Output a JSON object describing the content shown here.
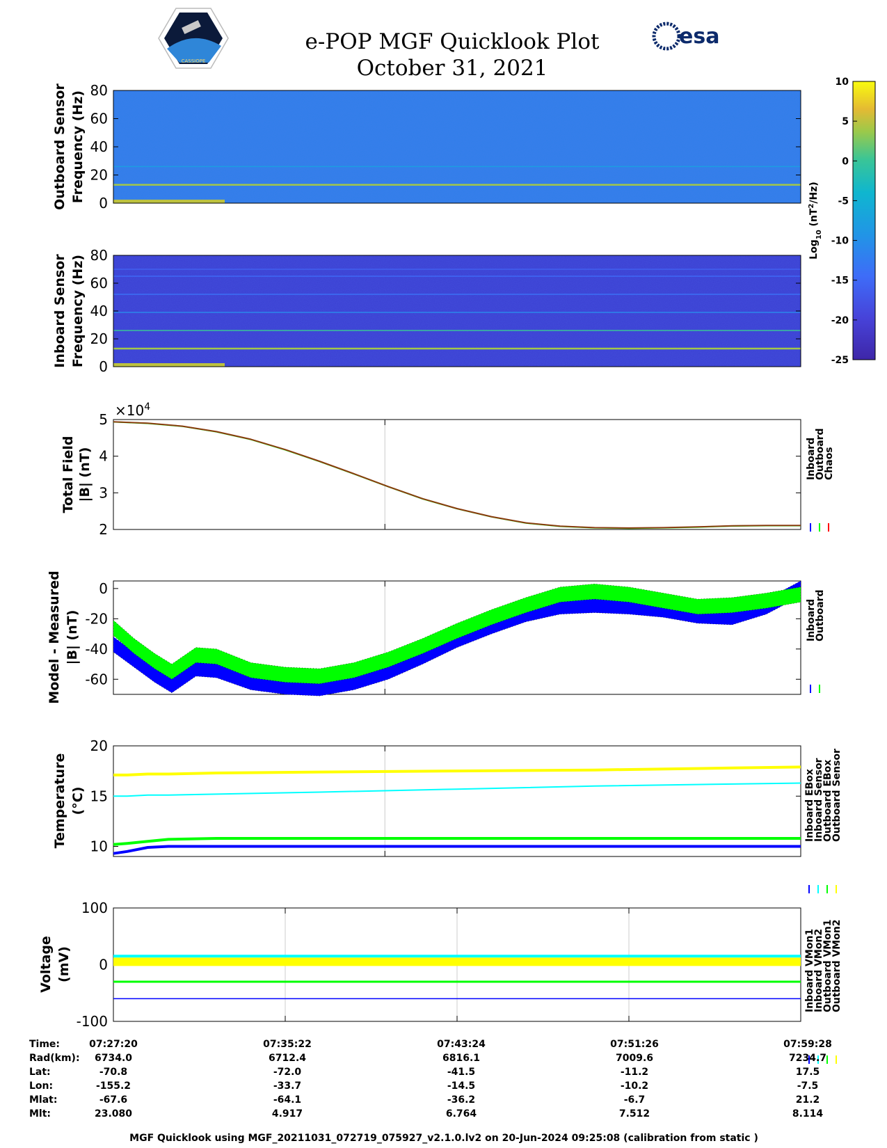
{
  "title_line1": "e-POP MGF Quicklook Plot",
  "title_line2": "October 31, 2021",
  "logos": {
    "mission": "CASSIOPE",
    "agency": "esa"
  },
  "footer": "MGF Quicklook using MGF_20211031_072719_075927_v2.1.0.lv2 on 20-Jun-2024 09:25:08 (calibration from static )",
  "colorbar": {
    "label_main": "Log",
    "label_sub": "10",
    "label_rest": "(nT",
    "label_sup": "2",
    "label_end": "/Hz)",
    "ticks": [
      10,
      5,
      0,
      -5,
      -10,
      -15,
      -20,
      -25
    ],
    "range": [
      -25,
      10
    ]
  },
  "colors": {
    "blue": "#0000ff",
    "green": "#00ff00",
    "red": "#ff0000",
    "cyan": "#00ffff",
    "yellow": "#ffff00",
    "spec_outboard_bg": "#2f7fe8",
    "spec_inboard_bg": "#3b3fd2",
    "line_total": "#8b3a10",
    "axis": "#000000"
  },
  "time_info": {
    "row_labels": [
      "Time:",
      "Rad(km):",
      "Lat:",
      "Lon:",
      "Mlat:",
      "Mlt:"
    ],
    "columns": [
      [
        "07:27:20",
        "6734.0",
        "-70.8",
        "-155.2",
        "-67.6",
        "23.080"
      ],
      [
        "07:35:22",
        "6712.4",
        "-72.0",
        "-33.7",
        "-64.1",
        "4.917"
      ],
      [
        "07:43:24",
        "6816.1",
        "-41.5",
        "-14.5",
        "-36.2",
        "6.764"
      ],
      [
        "07:51:26",
        "7009.6",
        "-11.2",
        "-10.2",
        "-6.7",
        "7.512"
      ],
      [
        "07:59:28",
        "7234.7",
        "17.5",
        "-7.5",
        "21.2",
        "8.114"
      ]
    ]
  },
  "chart_data": [
    {
      "type": "heatmap",
      "name": "outboard-spectrogram",
      "ylabel_line1": "Outboard Sensor",
      "ylabel_line2": "Frequency (Hz)",
      "ylim": [
        0,
        80
      ],
      "yticks": [
        0,
        20,
        40,
        60,
        80
      ],
      "tones_hz": [
        {
          "f": 13,
          "level": 4
        },
        {
          "f": 26,
          "level": -8
        }
      ],
      "background_level": -8
    },
    {
      "type": "heatmap",
      "name": "inboard-spectrogram",
      "ylabel_line1": "Inboard Sensor",
      "ylabel_line2": "Frequency (Hz)",
      "ylim": [
        0,
        80
      ],
      "yticks": [
        0,
        20,
        40,
        60,
        80
      ],
      "tones_hz": [
        {
          "f": 13,
          "level": 4
        },
        {
          "f": 26,
          "level": 0
        },
        {
          "f": 39,
          "level": -11
        },
        {
          "f": 52,
          "level": -14
        },
        {
          "f": 65,
          "level": -15
        },
        {
          "f": 70,
          "level": -16
        }
      ],
      "background_level": -18
    },
    {
      "type": "line",
      "name": "total-field",
      "ylabel_line1": "Total Field",
      "ylabel_line2": "|B| (nT)",
      "ylim": [
        2,
        5
      ],
      "yticks": [
        2,
        3,
        4,
        5
      ],
      "scale_label": "×10",
      "scale_exp": "4",
      "legend": [
        "Inboard",
        "Outboard",
        "Chaos"
      ],
      "x": [
        0,
        0.05,
        0.1,
        0.15,
        0.2,
        0.25,
        0.3,
        0.35,
        0.4,
        0.45,
        0.5,
        0.55,
        0.6,
        0.65,
        0.7,
        0.75,
        0.8,
        0.85,
        0.9,
        0.95,
        1.0
      ],
      "series": [
        {
          "name": "Chaos",
          "values": [
            4.94,
            4.9,
            4.82,
            4.67,
            4.46,
            4.18,
            3.86,
            3.52,
            3.17,
            2.84,
            2.57,
            2.35,
            2.18,
            2.09,
            2.05,
            2.04,
            2.05,
            2.07,
            2.1,
            2.11,
            2.11
          ]
        }
      ]
    },
    {
      "type": "line",
      "name": "model-minus-measured",
      "ylabel_line1": "Model - Measured",
      "ylabel_line2": "|B| (nT)",
      "ylim": [
        -70,
        5
      ],
      "yticks": [
        -60,
        -40,
        -20,
        0
      ],
      "legend": [
        "Inboard",
        "Outboard"
      ],
      "x": [
        0,
        0.03,
        0.06,
        0.085,
        0.12,
        0.15,
        0.2,
        0.25,
        0.3,
        0.35,
        0.4,
        0.45,
        0.5,
        0.55,
        0.6,
        0.65,
        0.7,
        0.75,
        0.8,
        0.85,
        0.9,
        0.95,
        1.0
      ],
      "series": [
        {
          "name": "Inboard",
          "values": [
            -37,
            -47,
            -57,
            -64,
            -53,
            -54,
            -62,
            -65,
            -66,
            -62,
            -55,
            -45,
            -34,
            -25,
            -17,
            -12,
            -11,
            -12,
            -14,
            -18,
            -19,
            -12,
            0
          ]
        },
        {
          "name": "Outboard",
          "values": [
            -26,
            -38,
            -48,
            -55,
            -44,
            -45,
            -54,
            -57,
            -58,
            -54,
            -47,
            -38,
            -28,
            -19,
            -11,
            -4,
            -2,
            -4,
            -8,
            -12,
            -11,
            -8,
            -4
          ]
        }
      ],
      "band_width": 5
    },
    {
      "type": "line",
      "name": "temperature",
      "ylabel_line1": "Temperature",
      "ylabel_line2": "(°C)",
      "ylim": [
        9,
        20
      ],
      "yticks": [
        10,
        15,
        20
      ],
      "legend": [
        "Inboard EBox",
        "Inboard Sensor",
        "Outboard EBox",
        "Outboard Sensor"
      ],
      "x": [
        0,
        0.02,
        0.05,
        0.08,
        0.15,
        0.3,
        0.5,
        0.7,
        0.9,
        1.0
      ],
      "series": [
        {
          "name": "Inboard EBox",
          "values": [
            9.3,
            9.5,
            9.9,
            10.0,
            10.0,
            10.0,
            10.0,
            10.0,
            10.0,
            10.0
          ]
        },
        {
          "name": "Inboard Sensor",
          "values": [
            15.0,
            15.0,
            15.1,
            15.1,
            15.2,
            15.4,
            15.7,
            16.0,
            16.2,
            16.3
          ]
        },
        {
          "name": "Outboard EBox",
          "values": [
            10.2,
            10.3,
            10.5,
            10.7,
            10.8,
            10.8,
            10.8,
            10.8,
            10.8,
            10.8
          ]
        },
        {
          "name": "Outboard Sensor",
          "values": [
            17.1,
            17.1,
            17.2,
            17.2,
            17.3,
            17.4,
            17.5,
            17.6,
            17.8,
            17.9
          ]
        }
      ]
    },
    {
      "type": "line",
      "name": "voltage",
      "ylabel_line1": "Voltage",
      "ylabel_line2": "(mV)",
      "ylim": [
        -100,
        100
      ],
      "yticks": [
        -100,
        0,
        100
      ],
      "legend": [
        "Inboard VMon1",
        "Inboard VMon2",
        "Outboard VMon1",
        "Outboard VMon2"
      ],
      "x": [
        0,
        1
      ],
      "series": [
        {
          "name": "Inboard VMon1",
          "values": [
            -60,
            -60
          ]
        },
        {
          "name": "Inboard VMon2",
          "values": [
            15,
            15
          ]
        },
        {
          "name": "Outboard VMon1",
          "values": [
            -30,
            -30
          ]
        },
        {
          "name": "Outboard VMon2",
          "values": [
            5,
            5
          ]
        }
      ],
      "xticks": [
        "07:27:20",
        "07:35:22",
        "07:43:24",
        "07:51:26",
        "07:59:28"
      ]
    }
  ]
}
